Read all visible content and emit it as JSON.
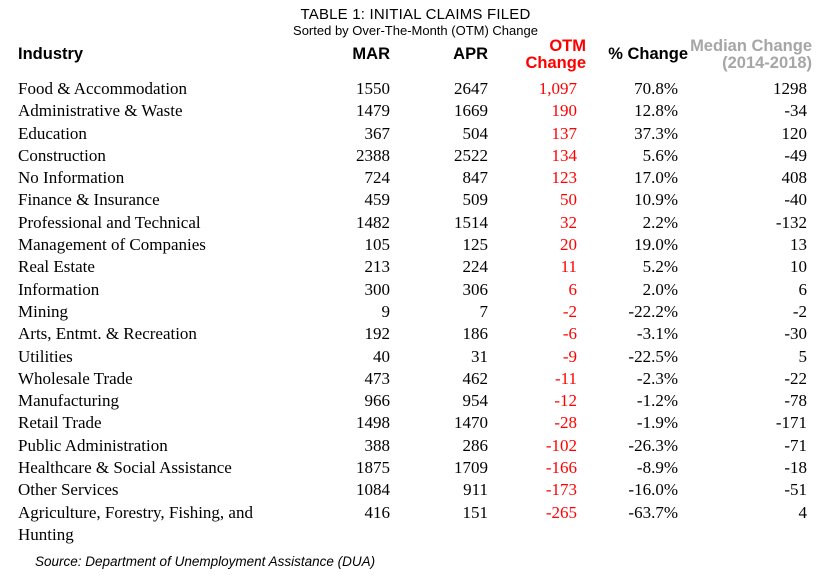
{
  "table": {
    "title": "TABLE 1: INITIAL CLAIMS FILED",
    "subtitle": "Sorted by Over-The-Month (OTM) Change",
    "headers": {
      "industry": "Industry",
      "mar": "MAR",
      "apr": "APR",
      "otm_line1": "OTM",
      "otm_line2": "Change",
      "pct": "% Change",
      "median_line1": "Median Change",
      "median_line2": "(2014-2018)"
    },
    "rows": [
      {
        "industry": "Food & Accommodation",
        "mar": "1550",
        "apr": "2647",
        "otm": "1,097",
        "pct": "70.8%",
        "median": "1298"
      },
      {
        "industry": "Administrative & Waste",
        "mar": "1479",
        "apr": "1669",
        "otm": "190",
        "pct": "12.8%",
        "median": "-34"
      },
      {
        "industry": "Education",
        "mar": "367",
        "apr": "504",
        "otm": "137",
        "pct": "37.3%",
        "median": "120"
      },
      {
        "industry": "Construction",
        "mar": "2388",
        "apr": "2522",
        "otm": "134",
        "pct": "5.6%",
        "median": "-49"
      },
      {
        "industry": "No Information",
        "mar": "724",
        "apr": "847",
        "otm": "123",
        "pct": "17.0%",
        "median": "408"
      },
      {
        "industry": "Finance & Insurance",
        "mar": "459",
        "apr": "509",
        "otm": "50",
        "pct": "10.9%",
        "median": "-40"
      },
      {
        "industry": "Professional and Technical",
        "mar": "1482",
        "apr": "1514",
        "otm": "32",
        "pct": "2.2%",
        "median": "-132"
      },
      {
        "industry": "Management of Companies",
        "mar": "105",
        "apr": "125",
        "otm": "20",
        "pct": "19.0%",
        "median": "13"
      },
      {
        "industry": "Real Estate",
        "mar": "213",
        "apr": "224",
        "otm": "11",
        "pct": "5.2%",
        "median": "10"
      },
      {
        "industry": "Information",
        "mar": "300",
        "apr": "306",
        "otm": "6",
        "pct": "2.0%",
        "median": "6"
      },
      {
        "industry": "Mining",
        "mar": "9",
        "apr": "7",
        "otm": "-2",
        "pct": "-22.2%",
        "median": "-2"
      },
      {
        "industry": "Arts, Entmt. & Recreation",
        "mar": "192",
        "apr": "186",
        "otm": "-6",
        "pct": "-3.1%",
        "median": "-30"
      },
      {
        "industry": "Utilities",
        "mar": "40",
        "apr": "31",
        "otm": "-9",
        "pct": "-22.5%",
        "median": "5"
      },
      {
        "industry": "Wholesale Trade",
        "mar": "473",
        "apr": "462",
        "otm": "-11",
        "pct": "-2.3%",
        "median": "-22"
      },
      {
        "industry": "Manufacturing",
        "mar": "966",
        "apr": "954",
        "otm": "-12",
        "pct": "-1.2%",
        "median": "-78"
      },
      {
        "industry": "Retail Trade",
        "mar": "1498",
        "apr": "1470",
        "otm": "-28",
        "pct": "-1.9%",
        "median": "-171"
      },
      {
        "industry": "Public Administration",
        "mar": "388",
        "apr": "286",
        "otm": "-102",
        "pct": "-26.3%",
        "median": "-71"
      },
      {
        "industry": "Healthcare & Social Assistance",
        "mar": "1875",
        "apr": "1709",
        "otm": "-166",
        "pct": "-8.9%",
        "median": "-18"
      },
      {
        "industry": "Other Services",
        "mar": "1084",
        "apr": "911",
        "otm": "-173",
        "pct": "-16.0%",
        "median": "-51"
      },
      {
        "industry": "Agriculture, Forestry, Fishing, and Hunting",
        "mar": "416",
        "apr": "151",
        "otm": "-265",
        "pct": "-63.7%",
        "median": "4"
      }
    ],
    "source": "Source: Department of Unemployment Assistance (DUA)"
  },
  "colors": {
    "otm_red": "#FF0000",
    "median_gray": "#A6A6A6",
    "text": "#000000"
  }
}
